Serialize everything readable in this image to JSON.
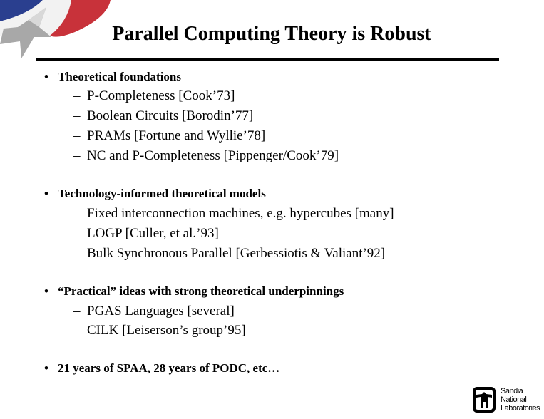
{
  "title": "Parallel Computing Theory is Robust",
  "bullet_marker": "•",
  "dash_marker": "–",
  "sections": [
    {
      "heading": "Theoretical foundations",
      "items": [
        "P-Completeness [Cook’73]",
        "Boolean Circuits [Borodin’77]",
        "PRAMs [Fortune and Wyllie’78]",
        "NC and P-Completeness [Pippenger/Cook’79]"
      ]
    },
    {
      "heading": "Technology-informed theoretical models",
      "items": [
        "Fixed interconnection machines, e.g. hypercubes [many]",
        "LOGP [Culler, et al.’93]",
        "Bulk Synchronous Parallel [Gerbessiotis & Valiant’92]"
      ]
    },
    {
      "heading": "“Practical” ideas with strong theoretical underpinnings",
      "items": [
        "PGAS Languages [several]",
        "CILK [Leiserson’s group’95]"
      ]
    },
    {
      "heading": "21 years of SPAA, 28 years of PODC, etc…",
      "items": []
    }
  ],
  "logo": {
    "lines": [
      "Sandia",
      "National",
      "Laboratories"
    ]
  },
  "colors": {
    "flag_red": "#c8323a",
    "flag_blue": "#2a3f8f",
    "star_gray": "#a0a0a0"
  }
}
